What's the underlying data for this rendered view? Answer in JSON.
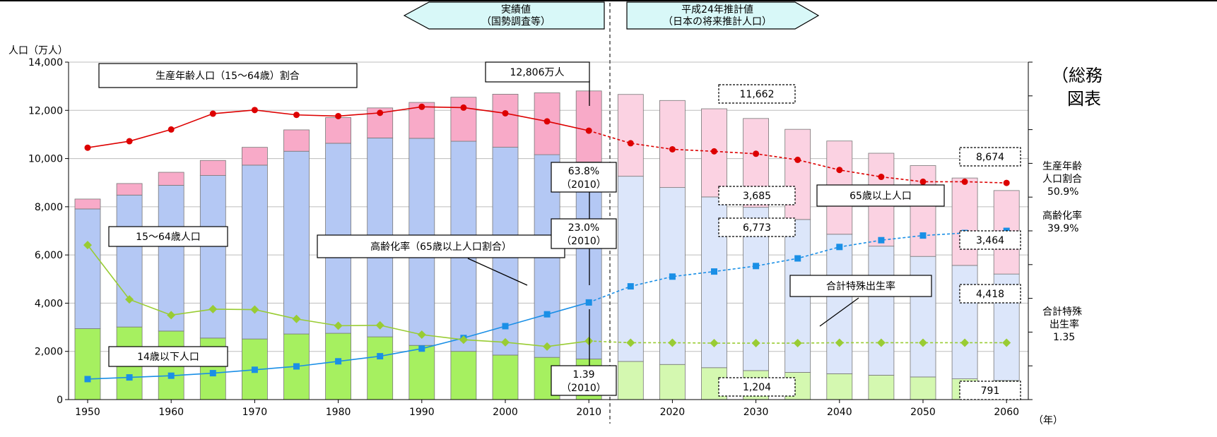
{
  "banner": {
    "left_line1": "実績値",
    "left_line2": "（国勢調査等）",
    "right_line1": "平成24年推計値",
    "right_line2": "（日本の将来推計人口）"
  },
  "side_cut_text": {
    "line1": "（総務",
    "line2": "図表"
  },
  "colors": {
    "young": "#a6f060",
    "working": "#b4c8f4",
    "elderly": "#f8aac8",
    "young_proj": "#d4f8b0",
    "working_proj": "#dce6fa",
    "elderly_proj": "#fbd2e2",
    "working_ratio": "#dd0000",
    "aging_rate": "#1a8fe6",
    "fertility": "#99cc33"
  },
  "chart_data": {
    "type": "bar+line",
    "ylabel": "人口（万人）",
    "xunit": "（年）",
    "ylim": [
      0,
      14000
    ],
    "yticks": [
      "0",
      "2,000",
      "4,000",
      "6,000",
      "8,000",
      "10,000",
      "12,000",
      "14,000"
    ],
    "xticks": [
      "1950",
      "1960",
      "1970",
      "1980",
      "1990",
      "2000",
      "2010",
      "2020",
      "2030",
      "2040",
      "2050",
      "2060"
    ],
    "x": [
      1950,
      1955,
      1960,
      1965,
      1970,
      1975,
      1980,
      1985,
      1990,
      1995,
      2000,
      2005,
      2010,
      2015,
      2020,
      2025,
      2030,
      2035,
      2040,
      2045,
      2050,
      2055,
      2060
    ],
    "actual_until": 2010,
    "stacked_series": [
      {
        "name": "14歳以下人口",
        "values": [
          2943,
          3012,
          2843,
          2553,
          2515,
          2722,
          2751,
          2603,
          2249,
          2001,
          1847,
          1752,
          1684,
          1583,
          1457,
          1324,
          1204,
          1129,
          1073,
          1012,
          939,
          861,
          791
        ]
      },
      {
        "name": "15〜64歳人口",
        "values": [
          4966,
          5473,
          6047,
          6744,
          7212,
          7581,
          7883,
          8251,
          8590,
          8717,
          8622,
          8409,
          8173,
          7682,
          7341,
          7084,
          6773,
          6343,
          5787,
          5353,
          5001,
          4706,
          4418
        ]
      },
      {
        "name": "65歳以上人口",
        "values": [
          411,
          479,
          540,
          624,
          739,
          887,
          1065,
          1247,
          1490,
          1826,
          2201,
          2567,
          2948,
          3395,
          3612,
          3657,
          3685,
          3741,
          3868,
          3856,
          3768,
          3626,
          3464
        ]
      }
    ],
    "line_series": [
      {
        "name": "生産年齢人口（15〜64歳）割合",
        "values": [
          59.6,
          61.2,
          64.1,
          68.0,
          68.9,
          67.7,
          67.4,
          68.2,
          69.7,
          69.5,
          68.1,
          66.1,
          63.8,
          60.7,
          59.2,
          58.7,
          58.1,
          56.6,
          54.1,
          52.4,
          51.2,
          51.2,
          50.9
        ]
      },
      {
        "name": "高齢化率（65歳以上人口割合）",
        "values": [
          4.9,
          5.3,
          5.7,
          6.3,
          7.1,
          7.9,
          9.1,
          10.3,
          12.1,
          14.6,
          17.4,
          20.2,
          23.0,
          26.8,
          29.1,
          30.3,
          31.6,
          33.4,
          36.1,
          37.7,
          38.8,
          39.4,
          39.9
        ]
      },
      {
        "name": "合計特殊出生率",
        "values": [
          3.65,
          2.37,
          2.0,
          2.14,
          2.13,
          1.91,
          1.75,
          1.76,
          1.54,
          1.42,
          1.36,
          1.26,
          1.39,
          1.35,
          1.35,
          1.34,
          1.34,
          1.34,
          1.35,
          1.35,
          1.35,
          1.35,
          1.35
        ]
      }
    ],
    "annotations": {
      "total_2010": "12,806万人",
      "total_2030": "11,662",
      "total_2060": "8,674",
      "elderly_2030": "3,685",
      "working_2030": "6,773",
      "young_2030": "1,204",
      "elderly_2060": "3,464",
      "working_2060": "4,418",
      "young_2060": "791",
      "ratio_2010_a": "63.8%",
      "ratio_2010_b": "（2010）",
      "aging_2010_a": "23.0%",
      "aging_2010_b": "（2010）",
      "tfr_2010_a": "1.39",
      "tfr_2010_b": "（2010）"
    },
    "series_labels": {
      "working_ratio": "生産年齢人口（15〜64歳）割合",
      "working": "15〜64歳人口",
      "young": "14歳以下人口",
      "aging": "高齢化率（65歳以上人口割合）",
      "elderly": "65歳以上人口",
      "fertility": "合計特殊出生率"
    },
    "right_labels": {
      "ratio_l1": "生産年齢",
      "ratio_l2": "人口割合",
      "ratio_l3": "50.9%",
      "aging_l1": "高齢化率",
      "aging_l2": "39.9%",
      "tfr_l1": "合計特殊",
      "tfr_l2": "出生率",
      "tfr_l3": "1.35"
    }
  }
}
